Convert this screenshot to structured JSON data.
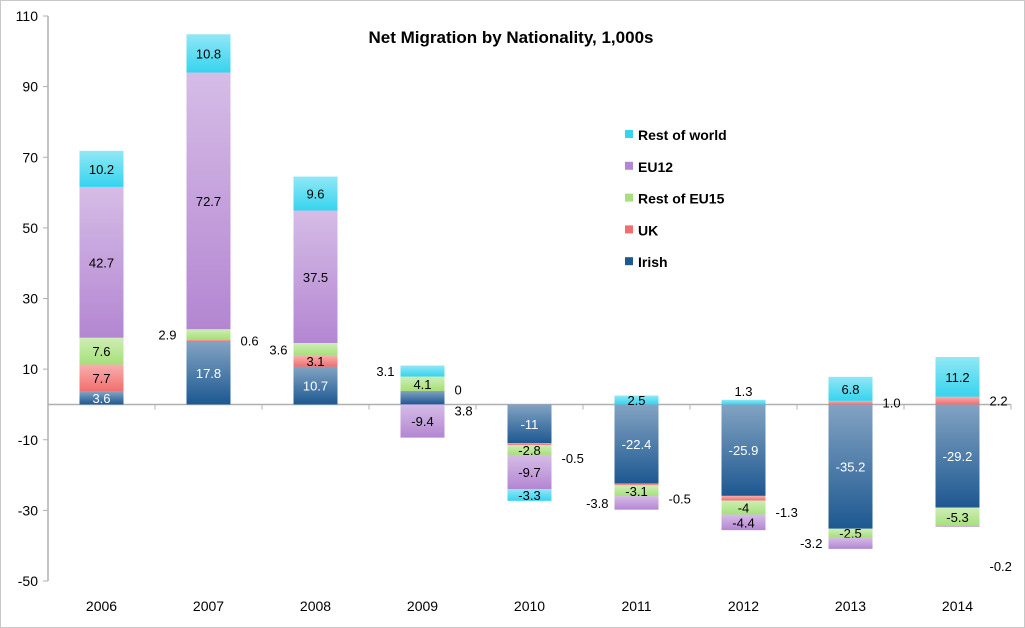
{
  "chart_data": {
    "type": "bar",
    "stacked": true,
    "title": "Net Migration by Nationality, 1,000s",
    "xlabel": "",
    "ylabel": "",
    "ylim": [
      -50,
      110
    ],
    "yticks": [
      -50,
      -30,
      -10,
      10,
      30,
      50,
      70,
      90,
      110
    ],
    "grid": false,
    "legend_position": "right",
    "categories": [
      "2006",
      "2007",
      "2008",
      "2009",
      "2010",
      "2011",
      "2012",
      "2013",
      "2014"
    ],
    "series": [
      {
        "name": "Irish",
        "color": "#1d5891",
        "values": [
          3.6,
          17.8,
          10.7,
          3.8,
          -11,
          -22.4,
          -25.9,
          -35.2,
          -29.2
        ],
        "labels": [
          "3.6",
          "17.8",
          "10.7",
          "3.8",
          "-11",
          "-22.4",
          "-25.9",
          "-35.2",
          "-29.2"
        ]
      },
      {
        "name": "UK",
        "color": "#f26d6d",
        "values": [
          7.7,
          0.6,
          3.1,
          0,
          -0.5,
          -0.5,
          -1.3,
          1.0,
          2.2
        ],
        "labels": [
          "7.7",
          "0.6",
          "3.1",
          "0",
          "-0.5",
          "-0.5",
          "-1.3",
          "1.0",
          "2.2"
        ]
      },
      {
        "name": "Rest of EU15",
        "color": "#a6e07a",
        "values": [
          7.6,
          2.9,
          3.6,
          4.1,
          -2.8,
          -3.1,
          -4,
          -2.5,
          -5.3
        ],
        "labels": [
          "7.6",
          "2.9",
          "3.6",
          "4.1",
          "-2.8",
          "-3.1",
          "-4",
          "-2.5",
          "-5.3"
        ]
      },
      {
        "name": "EU12",
        "color": "#b486d2",
        "values": [
          42.7,
          72.7,
          37.5,
          -9.4,
          -9.7,
          -3.8,
          -4.4,
          -3.2,
          -0.2
        ],
        "labels": [
          "42.7",
          "72.7",
          "37.5",
          "-9.4",
          "-9.7",
          "-3.8",
          "-4.4",
          "-3.2",
          "-0.2"
        ]
      },
      {
        "name": "Rest of world",
        "color": "#36d4ee",
        "values": [
          10.2,
          10.8,
          9.6,
          3.1,
          -3.3,
          2.5,
          1.3,
          6.8,
          11.2
        ],
        "labels": [
          "10.2",
          "10.8",
          "9.6",
          "3.1",
          "-3.3",
          "2.5",
          "1.3",
          "6.8",
          "11.2"
        ]
      }
    ]
  }
}
